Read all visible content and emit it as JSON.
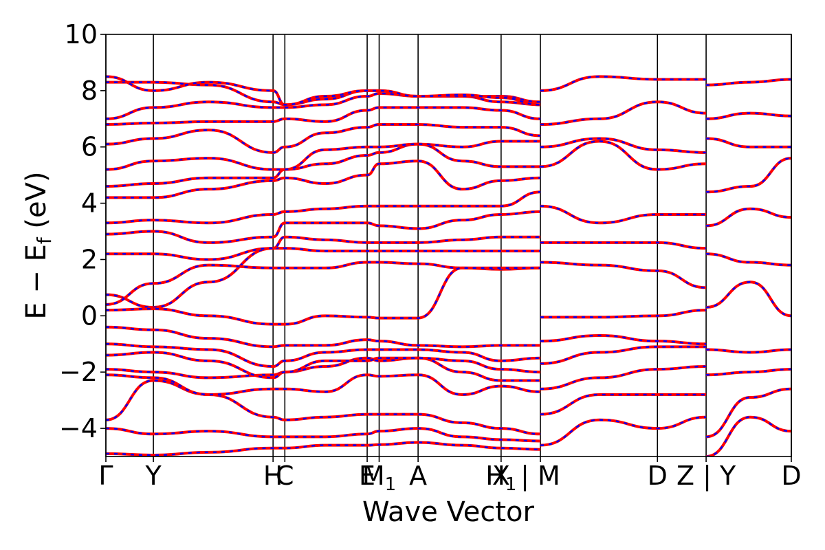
{
  "chart_data": {
    "type": "line",
    "title": "",
    "xlabel": "Wave Vector",
    "ylabel_main": "E − E",
    "ylabel_sub": "f",
    "ylabel_unit": " (eV)",
    "ylim": [
      -5,
      10
    ],
    "yticks": [
      -4,
      -2,
      0,
      2,
      4,
      6,
      8,
      10
    ],
    "ytick_labels": [
      "−4",
      "−2",
      "0",
      "2",
      "4",
      "6",
      "8",
      "10"
    ],
    "xlim": [
      0,
      1
    ],
    "grid": false,
    "legend": "none",
    "line_colors": {
      "primary": "#ff0000",
      "overlay": "#0000ff"
    },
    "kpoint_lines": [
      0.0,
      0.0693,
      0.2439,
      0.2611,
      0.3812,
      0.3987,
      0.4555,
      0.5766,
      0.6339,
      0.8047,
      0.8757,
      1.0
    ],
    "kpoint_labels": [
      {
        "pos": 0.0,
        "main": "Γ",
        "sub": ""
      },
      {
        "pos": 0.0693,
        "main": "Y",
        "sub": ""
      },
      {
        "pos": 0.2439,
        "main": "H",
        "sub": ""
      },
      {
        "pos": 0.2611,
        "main": "C",
        "sub": ""
      },
      {
        "pos": 0.3812,
        "main": "E",
        "sub": ""
      },
      {
        "pos": 0.3987,
        "main": "M",
        "sub": "1"
      },
      {
        "pos": 0.4555,
        "main": "A",
        "sub": ""
      },
      {
        "pos": 0.5766,
        "main": "X",
        "sub": ""
      },
      {
        "pos": 0.5766,
        "main": "H",
        "sub": "1"
      },
      {
        "pos": 0.6339,
        "main": "| M",
        "sub": ""
      },
      {
        "pos": 0.8047,
        "main": "D",
        "sub": ""
      },
      {
        "pos": 0.8757,
        "main": "Z | Y",
        "sub": ""
      },
      {
        "pos": 1.0,
        "main": "D",
        "sub": ""
      }
    ],
    "series": [
      {
        "x": [
          0,
          0.0693,
          0.15,
          0.2439,
          0.2611,
          0.32,
          0.3812,
          0.3987,
          0.4555,
          0.52,
          0.5766,
          0.6339
        ],
        "y": [
          -4.9,
          -4.95,
          -4.85,
          -4.7,
          -4.7,
          -4.6,
          -4.6,
          -4.58,
          -4.5,
          -4.6,
          -4.7,
          -4.75
        ]
      },
      {
        "x": [
          0,
          0.0693,
          0.15,
          0.2439,
          0.2611,
          0.32,
          0.3812,
          0.3987,
          0.4555,
          0.52,
          0.5766,
          0.6339
        ],
        "y": [
          -4.0,
          -4.2,
          -4.1,
          -4.3,
          -4.3,
          -4.3,
          -4.2,
          -4.1,
          -4.0,
          -4.3,
          -4.4,
          -4.45
        ]
      },
      {
        "x": [
          0,
          0.0693,
          0.15,
          0.2439,
          0.2611,
          0.32,
          0.3812,
          0.3987,
          0.4555,
          0.52,
          0.5766,
          0.6339
        ],
        "y": [
          -3.7,
          -2.3,
          -2.8,
          -3.6,
          -3.7,
          -3.6,
          -3.5,
          -3.5,
          -3.5,
          -3.8,
          -4.0,
          -4.2
        ]
      },
      {
        "x": [
          0,
          0.0693,
          0.15,
          0.2439,
          0.2611,
          0.32,
          0.3812,
          0.3987,
          0.4555,
          0.52,
          0.5766,
          0.6339
        ],
        "y": [
          -2.1,
          -2.2,
          -2.8,
          -2.6,
          -2.6,
          -2.7,
          -2.1,
          -2.15,
          -2.1,
          -2.8,
          -2.5,
          -2.7
        ]
      },
      {
        "x": [
          0,
          0.0693,
          0.15,
          0.2439,
          0.2611,
          0.32,
          0.3812,
          0.3987,
          0.4555,
          0.52,
          0.5766,
          0.6339
        ],
        "y": [
          -1.9,
          -2.0,
          -2.2,
          -2.1,
          -2.0,
          -1.8,
          -1.5,
          -1.6,
          -1.5,
          -2.0,
          -2.3,
          -2.3
        ]
      },
      {
        "x": [
          0,
          0.0693,
          0.15,
          0.2439,
          0.2611,
          0.32,
          0.3812,
          0.3987,
          0.4555,
          0.52,
          0.5766,
          0.6339
        ],
        "y": [
          -1.4,
          -1.3,
          -1.6,
          -2.2,
          -2.0,
          -1.6,
          -1.6,
          -1.5,
          -1.5,
          -1.6,
          -1.9,
          -2.0
        ]
      },
      {
        "x": [
          0,
          0.0693,
          0.15,
          0.2439,
          0.2611,
          0.32,
          0.3812,
          0.3987,
          0.4555,
          0.52,
          0.5766,
          0.6339
        ],
        "y": [
          -1.0,
          -1.1,
          -1.2,
          -1.8,
          -1.6,
          -1.3,
          -1.2,
          -1.2,
          -1.2,
          -1.3,
          -1.6,
          -1.5
        ]
      },
      {
        "x": [
          0,
          0.0693,
          0.15,
          0.2439,
          0.2611,
          0.32,
          0.3812,
          0.3987,
          0.4555,
          0.52,
          0.5766,
          0.6339
        ],
        "y": [
          -0.4,
          -0.5,
          -0.8,
          -1.1,
          -1.05,
          -1.05,
          -0.85,
          -0.9,
          -1.05,
          -1.1,
          -1.05,
          -1.05
        ]
      },
      {
        "x": [
          0,
          0.0693,
          0.15,
          0.2439,
          0.2611,
          0.32,
          0.3812,
          0.3987,
          0.4555,
          0.52,
          0.5766,
          0.6339
        ],
        "y": [
          0.75,
          0.3,
          1.2,
          2.4,
          2.4,
          2.3,
          2.3,
          2.3,
          2.3,
          2.3,
          2.3,
          2.3
        ]
      },
      {
        "x": [
          0,
          0.0693,
          0.15,
          0.2439,
          0.2611,
          0.32,
          0.3812,
          0.3987,
          0.4555,
          0.52,
          0.5766,
          0.6339
        ],
        "y": [
          0.4,
          1.15,
          1.8,
          1.7,
          1.7,
          1.7,
          1.9,
          1.9,
          1.85,
          1.7,
          1.65,
          1.7
        ]
      },
      {
        "x": [
          0,
          0.0693,
          0.15,
          0.2439,
          0.2611,
          0.32,
          0.3812,
          0.3987,
          0.4555,
          0.52,
          0.5766,
          0.6339
        ],
        "y": [
          0.2,
          0.25,
          0.0,
          -0.3,
          -0.3,
          0.0,
          -0.05,
          -0.08,
          -0.08,
          1.7,
          1.7,
          1.7
        ]
      },
      {
        "x": [
          0,
          0.0693,
          0.15,
          0.2439,
          0.2611,
          0.32,
          0.3812,
          0.3987,
          0.4555,
          0.52,
          0.5766,
          0.6339
        ],
        "y": [
          2.2,
          2.2,
          2.0,
          2.4,
          2.8,
          2.7,
          2.6,
          2.6,
          2.6,
          2.7,
          2.8,
          2.8
        ]
      },
      {
        "x": [
          0,
          0.0693,
          0.15,
          0.2439,
          0.2611,
          0.32,
          0.3812,
          0.3987,
          0.4555,
          0.52,
          0.5766,
          0.6339
        ],
        "y": [
          2.9,
          3.0,
          2.6,
          2.8,
          3.3,
          3.3,
          3.3,
          3.2,
          3.1,
          3.4,
          3.6,
          3.7
        ]
      },
      {
        "x": [
          0,
          0.0693,
          0.15,
          0.2439,
          0.2611,
          0.32,
          0.3812,
          0.3987,
          0.4555,
          0.52,
          0.5766,
          0.6339
        ],
        "y": [
          3.3,
          3.4,
          3.3,
          3.6,
          3.7,
          3.8,
          3.9,
          3.9,
          3.9,
          3.9,
          3.9,
          4.4
        ]
      },
      {
        "x": [
          0,
          0.0693,
          0.15,
          0.2439,
          0.2611,
          0.32,
          0.3812,
          0.3987,
          0.4555,
          0.52,
          0.5766,
          0.6339
        ],
        "y": [
          4.2,
          4.2,
          4.5,
          4.8,
          4.9,
          4.7,
          5.0,
          5.4,
          5.5,
          4.5,
          4.8,
          4.9
        ]
      },
      {
        "x": [
          0,
          0.0693,
          0.15,
          0.2439,
          0.2611,
          0.32,
          0.3812,
          0.3987,
          0.4555,
          0.52,
          0.5766,
          0.6339
        ],
        "y": [
          4.6,
          4.7,
          4.9,
          4.9,
          5.2,
          5.4,
          5.7,
          5.8,
          6.1,
          5.5,
          5.3,
          5.3
        ]
      },
      {
        "x": [
          0,
          0.0693,
          0.15,
          0.2439,
          0.2611,
          0.32,
          0.3812,
          0.3987,
          0.4555,
          0.52,
          0.5766,
          0.6339
        ],
        "y": [
          5.2,
          5.5,
          5.6,
          5.2,
          5.2,
          5.9,
          6.0,
          6.0,
          6.1,
          6.0,
          6.2,
          6.2
        ]
      },
      {
        "x": [
          0,
          0.0693,
          0.15,
          0.2439,
          0.2611,
          0.32,
          0.3812,
          0.3987,
          0.4555,
          0.52,
          0.5766,
          0.6339
        ],
        "y": [
          6.1,
          6.3,
          6.6,
          5.8,
          6.0,
          6.5,
          6.7,
          6.8,
          6.8,
          6.7,
          6.7,
          6.4
        ]
      },
      {
        "x": [
          0,
          0.0693,
          0.15,
          0.2439,
          0.2611,
          0.32,
          0.3812,
          0.3987,
          0.4555,
          0.52,
          0.5766,
          0.6339
        ],
        "y": [
          6.8,
          6.85,
          6.9,
          6.9,
          7.0,
          6.9,
          7.3,
          7.4,
          7.4,
          7.4,
          7.3,
          7.0
        ]
      },
      {
        "x": [
          0,
          0.0693,
          0.15,
          0.2439,
          0.2611,
          0.32,
          0.3812,
          0.3987,
          0.4555,
          0.52,
          0.5766,
          0.6339
        ],
        "y": [
          7.0,
          7.4,
          7.6,
          7.4,
          7.4,
          7.5,
          7.8,
          7.9,
          7.8,
          7.8,
          7.6,
          7.5
        ]
      },
      {
        "x": [
          0,
          0.0693,
          0.15,
          0.2439,
          0.2611,
          0.32,
          0.3812,
          0.3987,
          0.4555,
          0.52,
          0.5766,
          0.6339
        ],
        "y": [
          8.3,
          8.3,
          8.2,
          7.6,
          7.5,
          7.7,
          8.0,
          8.0,
          7.8,
          7.8,
          7.8,
          7.6
        ]
      },
      {
        "x": [
          0,
          0.0693,
          0.15,
          0.2439,
          0.2611,
          0.32,
          0.3812,
          0.3987,
          0.4555,
          0.52,
          0.5766,
          0.6339
        ],
        "y": [
          8.5,
          8.0,
          8.3,
          8.0,
          7.5,
          7.8,
          8.0,
          8.0,
          7.8,
          7.85,
          7.75,
          7.5
        ]
      },
      {
        "x": [
          0.6339,
          0.72,
          0.8047,
          0.8757
        ],
        "y": [
          -4.6,
          -3.7,
          -4.0,
          -3.6
        ]
      },
      {
        "x": [
          0.6339,
          0.72,
          0.8047,
          0.8757
        ],
        "y": [
          -3.5,
          -2.8,
          -2.8,
          -2.8
        ]
      },
      {
        "x": [
          0.6339,
          0.72,
          0.8047,
          0.8757
        ],
        "y": [
          -2.6,
          -2.2,
          -1.9,
          -1.8
        ]
      },
      {
        "x": [
          0.6339,
          0.72,
          0.8047,
          0.8757
        ],
        "y": [
          -1.7,
          -1.3,
          -1.1,
          -1.1
        ]
      },
      {
        "x": [
          0.6339,
          0.72,
          0.8047,
          0.8757
        ],
        "y": [
          -0.9,
          -0.7,
          -0.9,
          -1.0
        ]
      },
      {
        "x": [
          0.6339,
          0.72,
          0.8047,
          0.8757
        ],
        "y": [
          -0.05,
          -0.05,
          0.0,
          0.2
        ]
      },
      {
        "x": [
          0.6339,
          0.72,
          0.8047,
          0.8757
        ],
        "y": [
          1.9,
          1.8,
          1.6,
          1.0
        ]
      },
      {
        "x": [
          0.6339,
          0.72,
          0.8047,
          0.8757
        ],
        "y": [
          2.6,
          2.6,
          2.6,
          2.4
        ]
      },
      {
        "x": [
          0.6339,
          0.72,
          0.8047,
          0.8757
        ],
        "y": [
          3.9,
          3.3,
          3.6,
          3.6
        ]
      },
      {
        "x": [
          0.6339,
          0.72,
          0.8047,
          0.8757
        ],
        "y": [
          5.3,
          6.2,
          5.2,
          5.4
        ]
      },
      {
        "x": [
          0.6339,
          0.72,
          0.8047,
          0.8757
        ],
        "y": [
          6.0,
          6.3,
          5.9,
          5.8
        ]
      },
      {
        "x": [
          0.6339,
          0.72,
          0.8047,
          0.8757
        ],
        "y": [
          6.8,
          7.0,
          7.6,
          7.2
        ]
      },
      {
        "x": [
          0.6339,
          0.72,
          0.8047,
          0.8757
        ],
        "y": [
          8.0,
          8.5,
          8.4,
          8.4
        ]
      },
      {
        "x": [
          0.8757,
          0.94,
          1.0
        ],
        "y": [
          -5.0,
          -3.6,
          -4.1
        ]
      },
      {
        "x": [
          0.8757,
          0.94,
          1.0
        ],
        "y": [
          -4.3,
          -2.9,
          -2.6
        ]
      },
      {
        "x": [
          0.8757,
          0.94,
          1.0
        ],
        "y": [
          -2.1,
          -2.0,
          -1.9
        ]
      },
      {
        "x": [
          0.8757,
          0.94,
          1.0
        ],
        "y": [
          -1.2,
          -1.3,
          -1.2
        ]
      },
      {
        "x": [
          0.8757,
          0.94,
          1.0
        ],
        "y": [
          0.3,
          1.2,
          0.0
        ]
      },
      {
        "x": [
          0.8757,
          0.94,
          1.0
        ],
        "y": [
          2.2,
          1.9,
          1.8
        ]
      },
      {
        "x": [
          0.8757,
          0.94,
          1.0
        ],
        "y": [
          3.2,
          3.8,
          3.5
        ]
      },
      {
        "x": [
          0.8757,
          0.94,
          1.0
        ],
        "y": [
          4.4,
          4.6,
          5.6
        ]
      },
      {
        "x": [
          0.8757,
          0.94,
          1.0
        ],
        "y": [
          6.3,
          6.0,
          6.0
        ]
      },
      {
        "x": [
          0.8757,
          0.94,
          1.0
        ],
        "y": [
          7.0,
          7.2,
          7.1
        ]
      },
      {
        "x": [
          0.8757,
          0.94,
          1.0
        ],
        "y": [
          8.2,
          8.3,
          8.4
        ]
      }
    ]
  }
}
